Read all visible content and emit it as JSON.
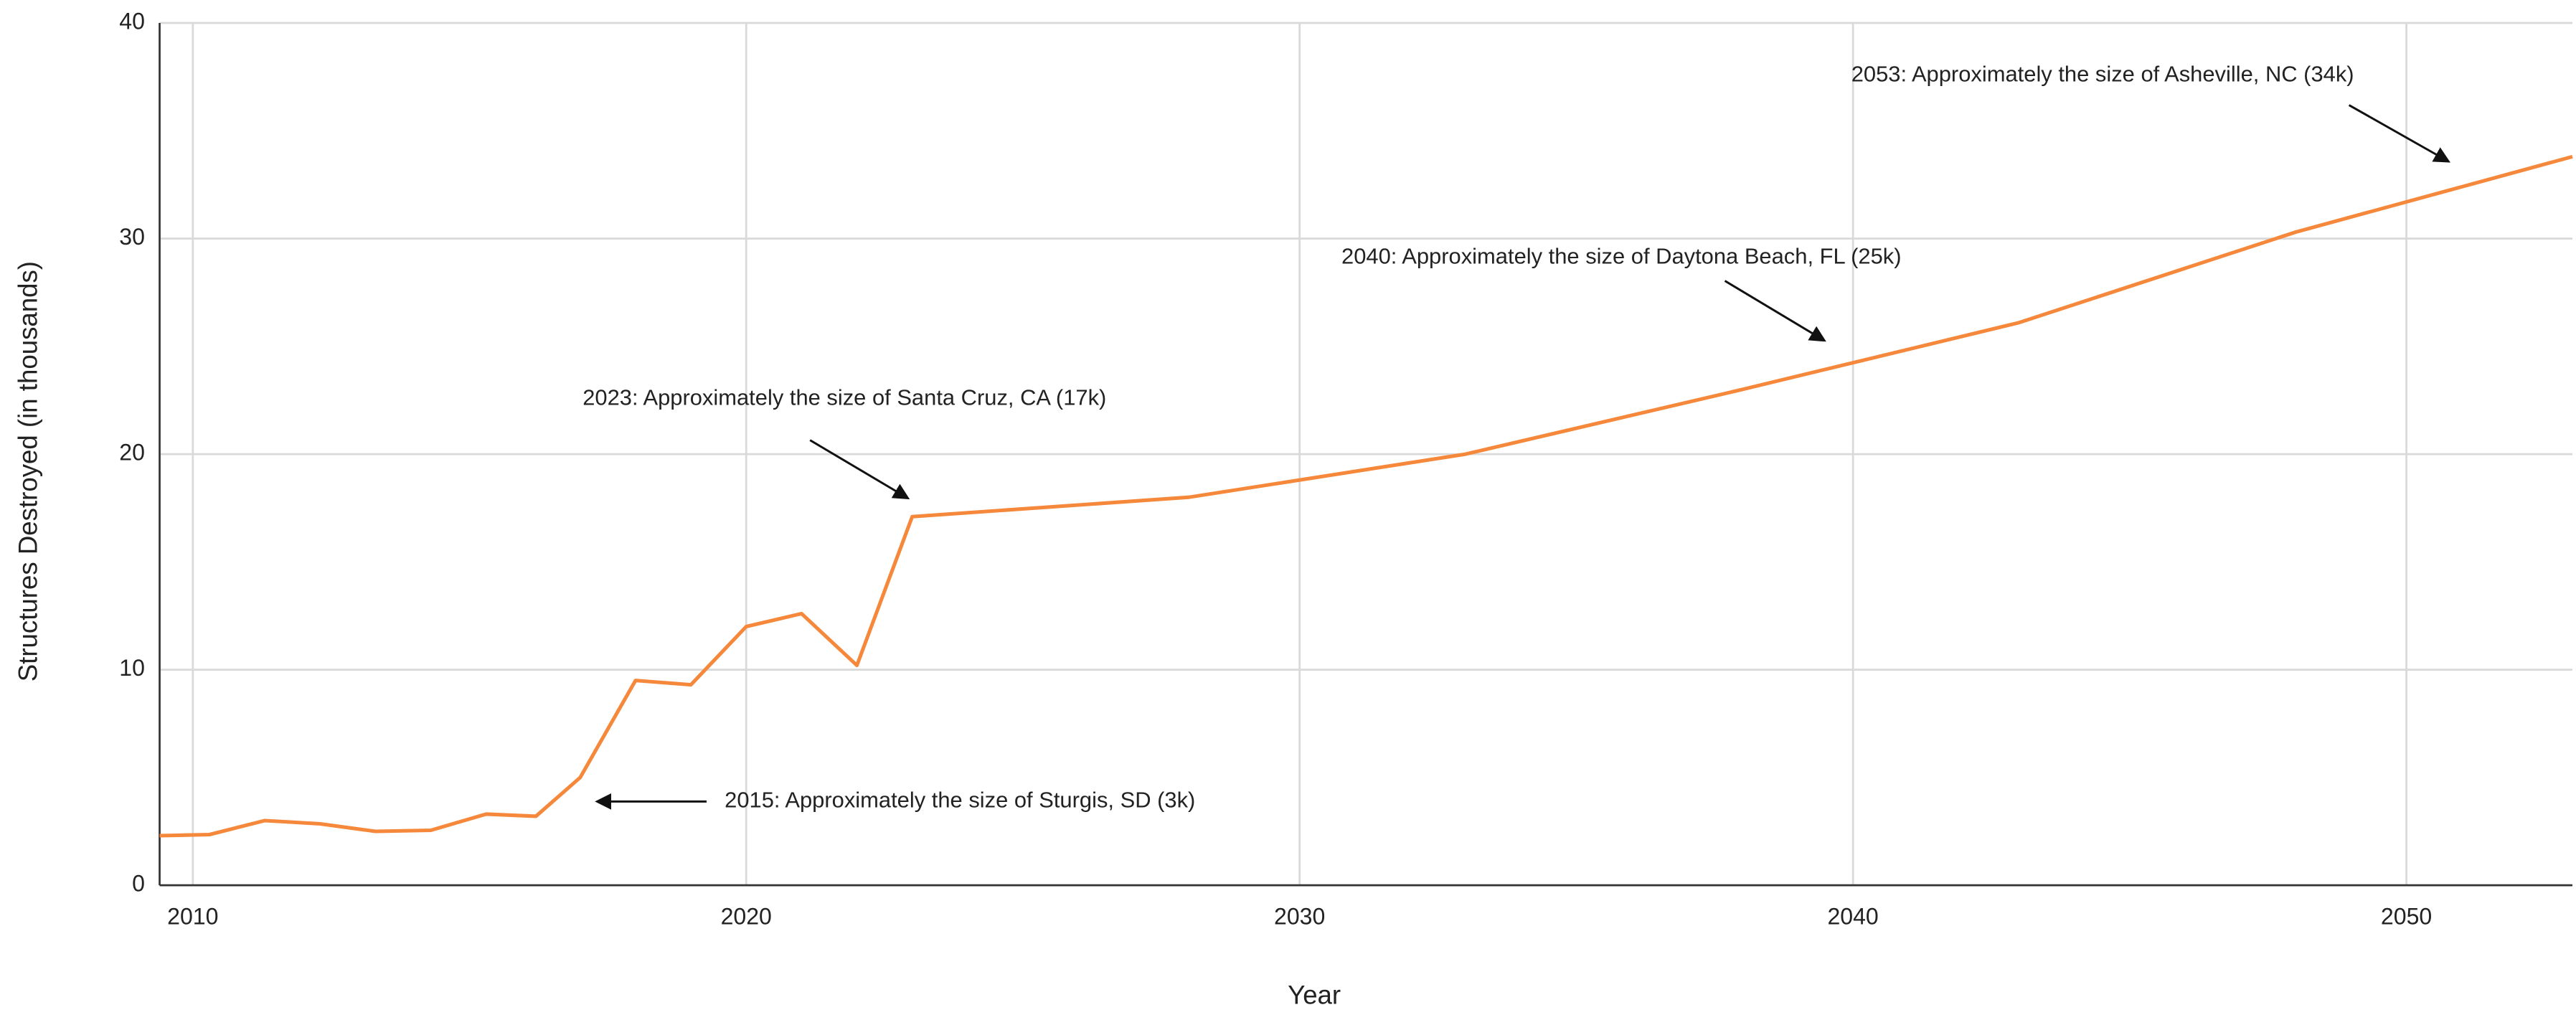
{
  "chart_data": {
    "type": "line",
    "x_label": "Year",
    "y_label": "Structures Destroyed (in thousands)",
    "x": [
      2009.4,
      2010.3,
      2011.3,
      2012.3,
      2013.3,
      2014.3,
      2015.3,
      2016.2,
      2017,
      2018,
      2019,
      2020,
      2021,
      2022,
      2023,
      2028,
      2033,
      2038,
      2043,
      2048,
      2053
    ],
    "series": [
      {
        "name": "Structures Destroyed",
        "color": "#f5883b",
        "values": [
          2.3,
          2.35,
          3.0,
          2.85,
          2.5,
          2.55,
          3.3,
          3.2,
          5.0,
          9.5,
          9.3,
          12.0,
          12.6,
          10.2,
          17.1,
          18.0,
          20.0,
          23.0,
          26.1,
          30.3,
          33.8
        ]
      }
    ],
    "xlim": [
      2009.4,
      2053
    ],
    "xticks": [
      2010,
      2020,
      2030,
      2040,
      2050
    ],
    "ylim": [
      0,
      40
    ],
    "yticks": [
      0,
      10,
      20,
      30,
      40
    ],
    "grid": true,
    "annotations": [
      "2053: Approximately the size of Asheville, NC (34k)",
      "2040: Approximately the size of Daytona Beach, FL (25k)",
      "2023: Approximately the size of Santa Cruz, CA (17k)",
      "2015: Approximately the size of Sturgis, SD (3k)"
    ]
  }
}
